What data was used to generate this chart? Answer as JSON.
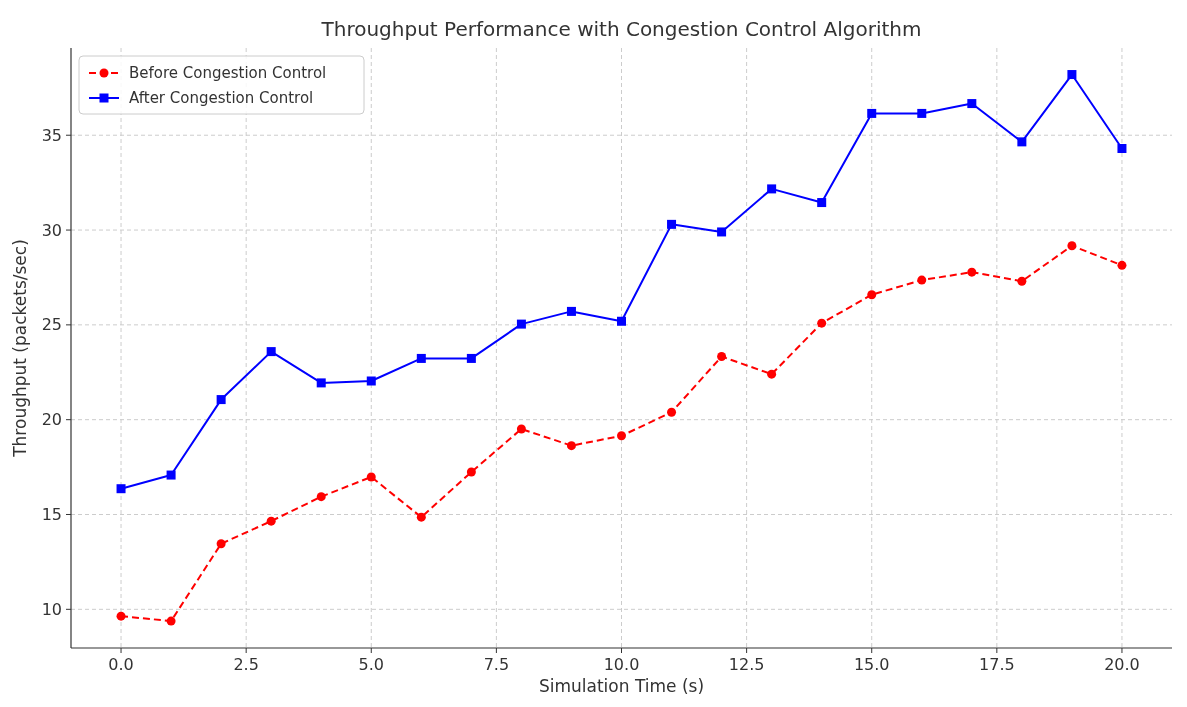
{
  "chart_data": {
    "type": "line",
    "title": "Throughput Performance with Congestion Control Algorithm",
    "xlabel": "Simulation Time (s)",
    "ylabel": "Throughput (packets/sec)",
    "x": [
      0,
      1,
      2,
      3,
      4,
      5,
      6,
      7,
      8,
      9,
      10,
      11,
      12,
      13,
      14,
      15,
      16,
      17,
      18,
      19,
      20
    ],
    "series": [
      {
        "name": "Before Congestion Control",
        "color": "#ff0000",
        "marker": "circle",
        "line_style": "dashed",
        "values": [
          9.64,
          9.38,
          13.46,
          14.65,
          15.94,
          16.98,
          14.86,
          17.24,
          19.51,
          18.63,
          19.15,
          20.39,
          23.33,
          22.4,
          25.09,
          26.59,
          27.36,
          27.78,
          27.3,
          29.17,
          28.14
        ]
      },
      {
        "name": "After Congestion Control",
        "color": "#0000ff",
        "marker": "square",
        "line_style": "solid",
        "values": [
          16.36,
          17.08,
          21.06,
          23.59,
          21.94,
          22.04,
          23.23,
          23.23,
          25.04,
          25.71,
          25.19,
          30.3,
          29.9,
          32.17,
          31.45,
          36.15,
          36.15,
          36.67,
          34.65,
          38.2,
          34.3
        ]
      }
    ],
    "xlim": [
      -1,
      21
    ],
    "xticks": [
      {
        "value": 0,
        "label": "0.0"
      },
      {
        "value": 2.5,
        "label": "2.5"
      },
      {
        "value": 5,
        "label": "5.0"
      },
      {
        "value": 7.5,
        "label": "7.5"
      },
      {
        "value": 10,
        "label": "10.0"
      },
      {
        "value": 12.5,
        "label": "12.5"
      },
      {
        "value": 15,
        "label": "15.0"
      },
      {
        "value": 17.5,
        "label": "17.5"
      },
      {
        "value": 20,
        "label": "20.0"
      }
    ],
    "ylim": [
      7.96,
      39.6
    ],
    "yticks": [
      10,
      15,
      20,
      25,
      30,
      35
    ],
    "grid": true,
    "legend": "top left"
  }
}
